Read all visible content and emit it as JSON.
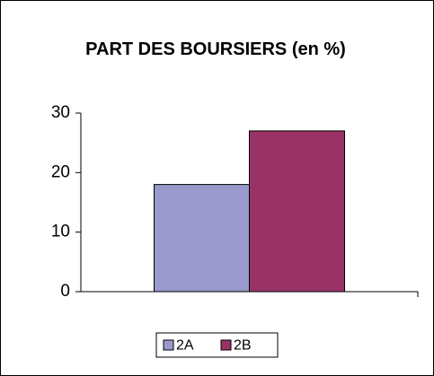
{
  "chart_data": {
    "type": "bar",
    "title": "PART DES BOURSIERS (en %)",
    "categories": [
      null
    ],
    "series": [
      {
        "name": "2A",
        "color": "#9999cc",
        "values": [
          18
        ]
      },
      {
        "name": "2B",
        "color": "#993366",
        "values": [
          27
        ]
      }
    ],
    "ylim": [
      0,
      30
    ],
    "yticks": [
      0,
      10,
      20,
      30
    ],
    "grid": false,
    "legend": "bottom"
  }
}
